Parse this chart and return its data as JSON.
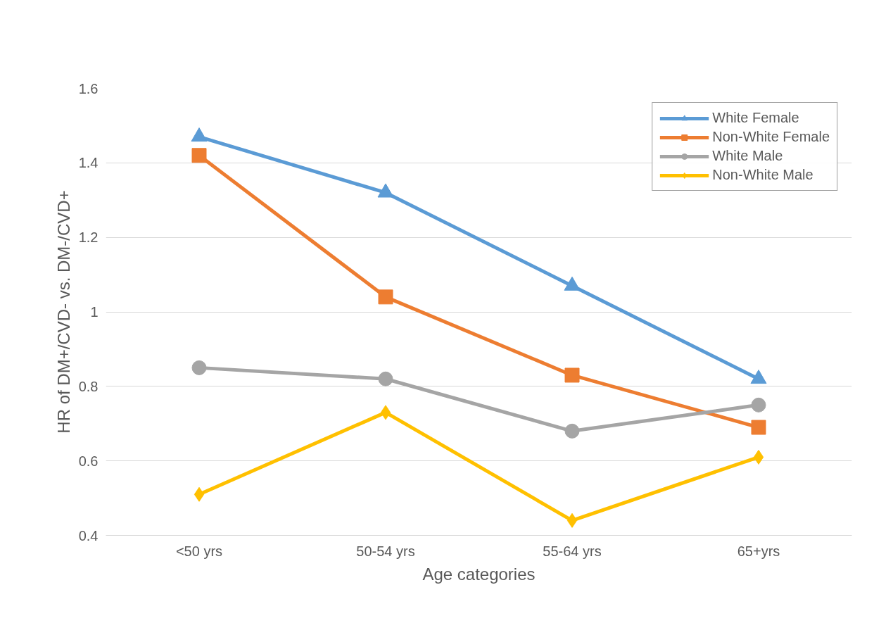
{
  "chart_data": {
    "type": "line",
    "xlabel": "Age categories",
    "ylabel": "HR of DM+/CVD- vs. DM-/CVD+",
    "categories": [
      "<50 yrs",
      "50-54 yrs",
      "55-64 yrs",
      "65+yrs"
    ],
    "series": [
      {
        "name": "White Female",
        "color": "#5b9bd5",
        "marker": "triangle",
        "values": [
          1.47,
          1.32,
          1.07,
          0.82
        ]
      },
      {
        "name": "Non-White Female",
        "color": "#ed7d31",
        "marker": "square",
        "values": [
          1.42,
          1.04,
          0.83,
          0.69
        ]
      },
      {
        "name": "White Male",
        "color": "#a5a5a5",
        "marker": "circle",
        "values": [
          0.85,
          0.82,
          0.68,
          0.75
        ]
      },
      {
        "name": "Non-White Male",
        "color": "#ffc000",
        "marker": "diamond",
        "values": [
          0.51,
          0.73,
          0.44,
          0.61
        ]
      }
    ],
    "ylim": [
      0.4,
      1.6
    ],
    "yticks": [
      0.4,
      0.6,
      0.8,
      1,
      1.2,
      1.4,
      1.6
    ],
    "grid": "y",
    "legend": "top right",
    "line_style": "solid"
  }
}
